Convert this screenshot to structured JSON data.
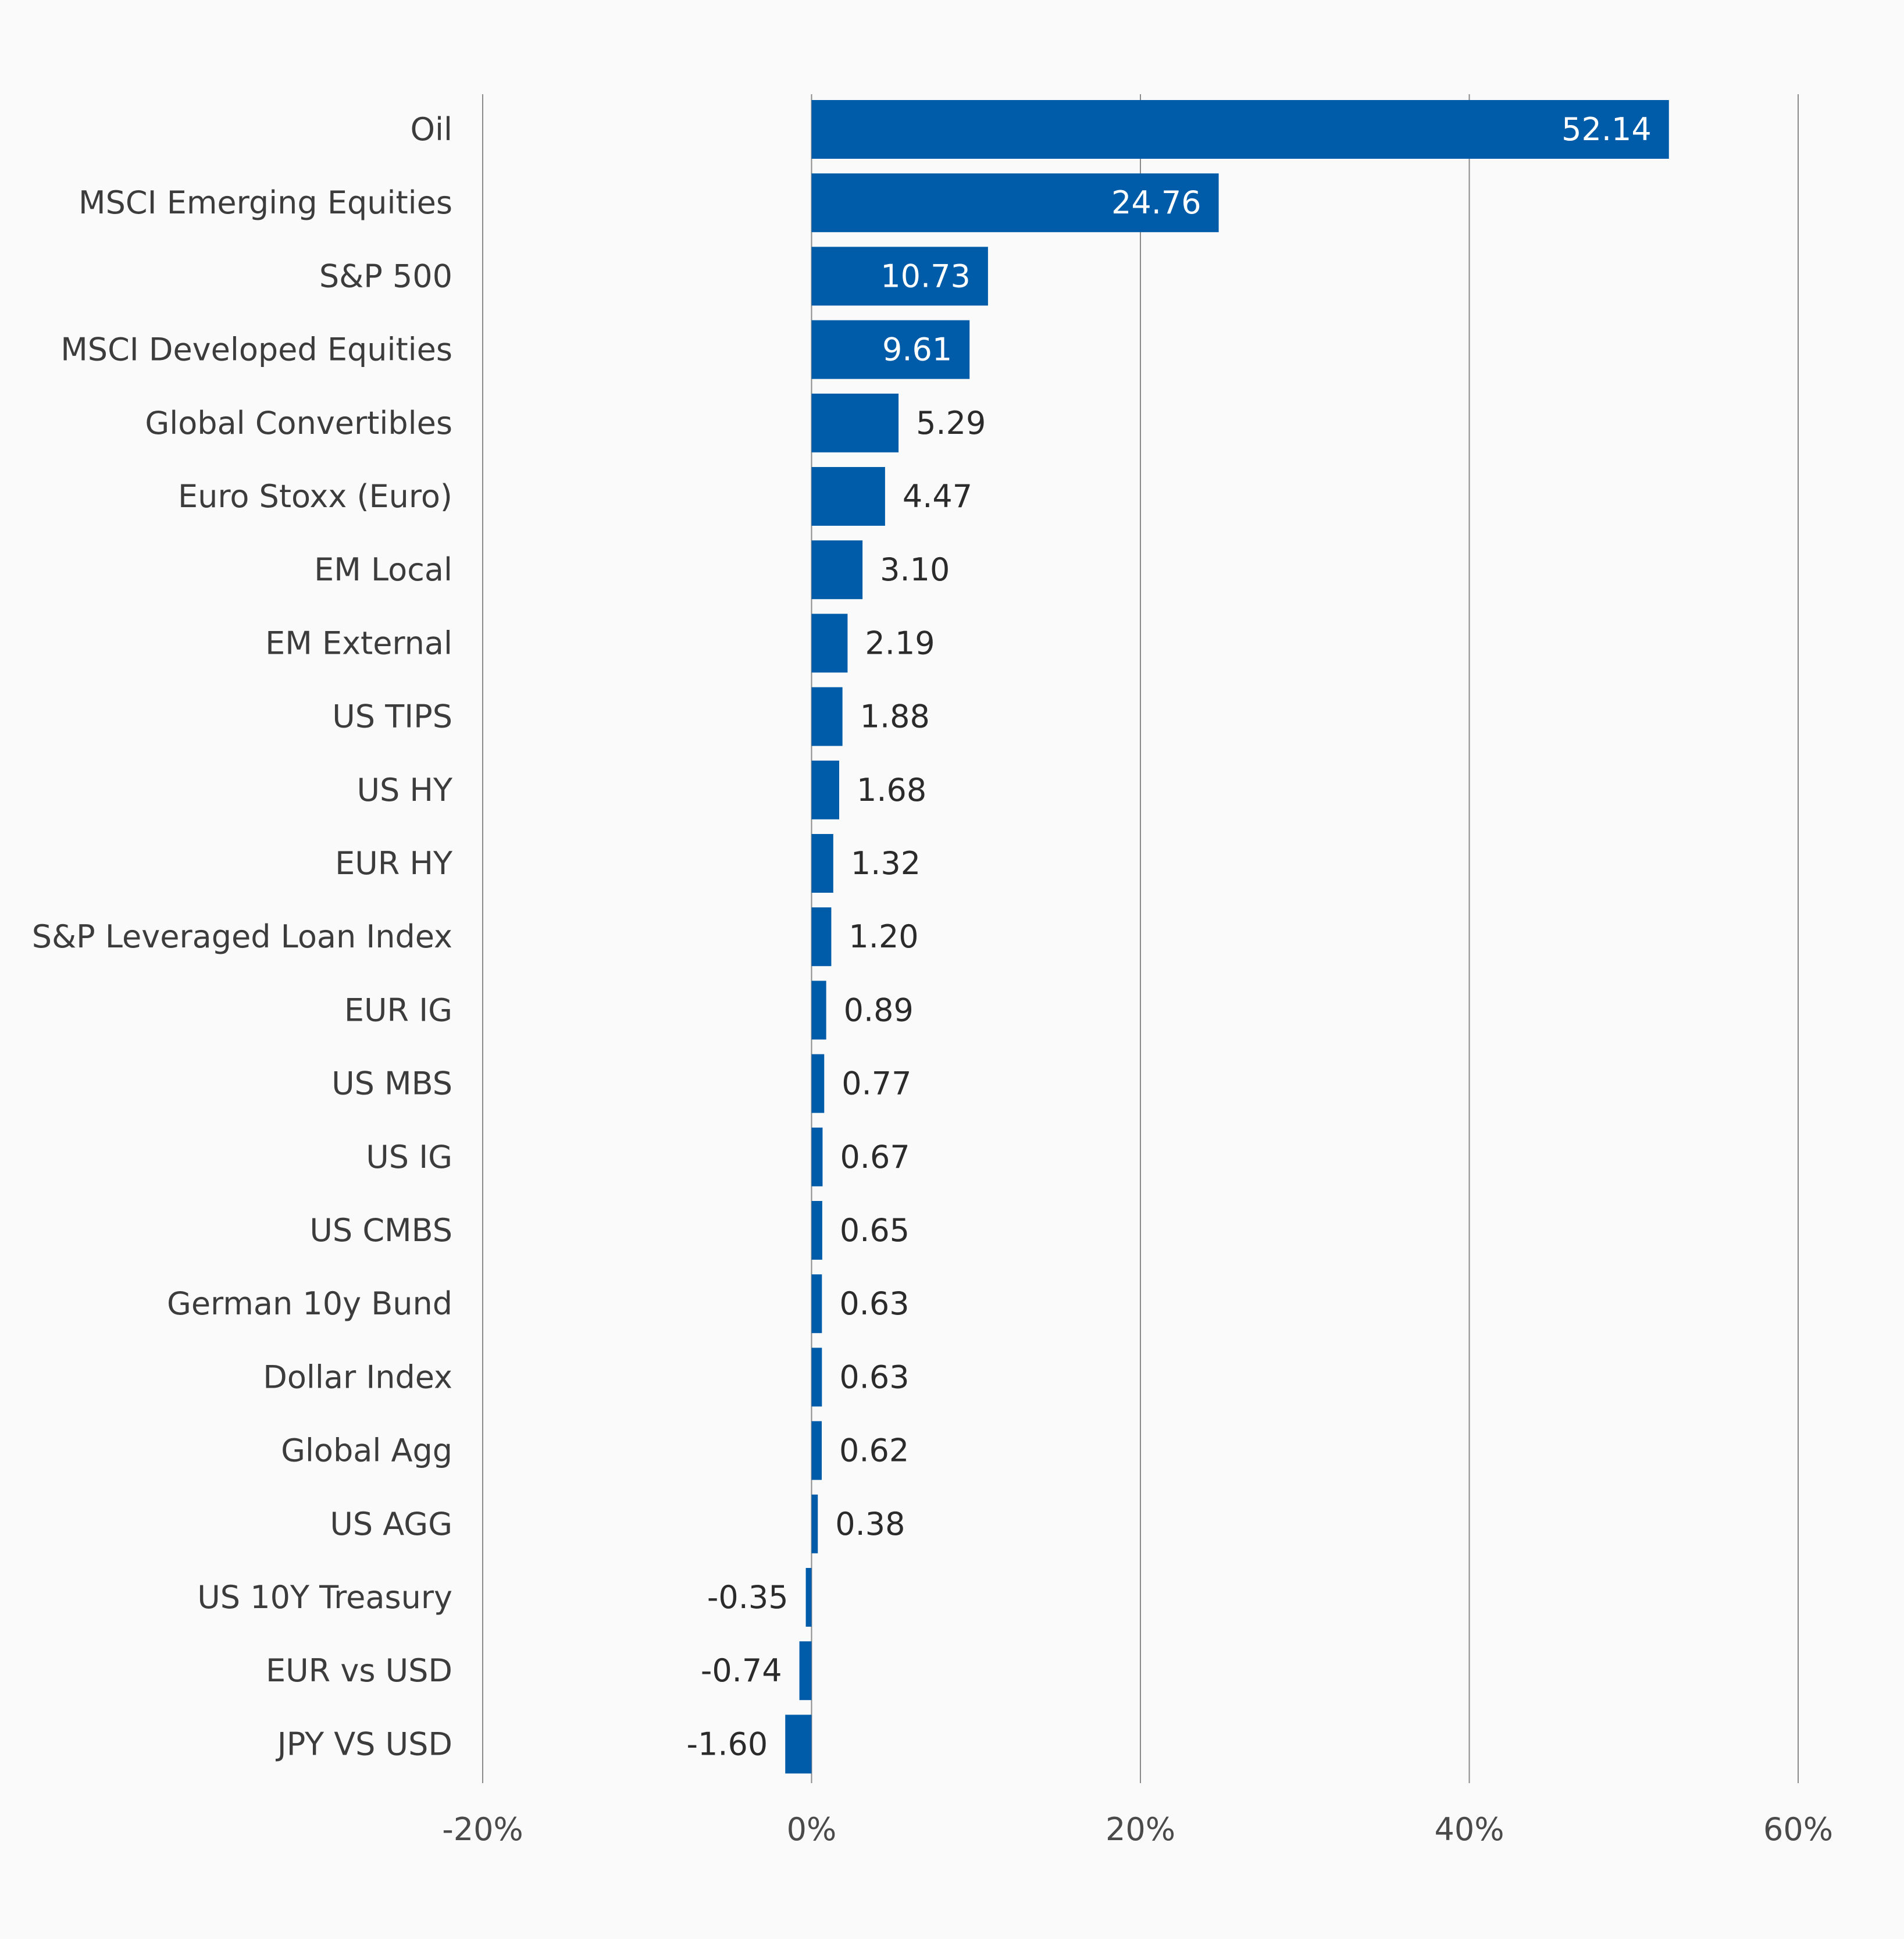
{
  "chart_data": {
    "type": "bar",
    "orientation": "horizontal",
    "categories": [
      "Oil",
      "MSCI Emerging Equities",
      "S&P 500",
      "MSCI Developed Equities",
      "Global Convertibles",
      "Euro Stoxx (Euro)",
      "EM Local",
      "EM External",
      "US TIPS",
      "US HY",
      "EUR HY",
      "S&P Leveraged Loan Index",
      "EUR IG",
      "US MBS",
      "US IG",
      "US CMBS",
      "German 10y Bund",
      "Dollar Index",
      "Global Agg",
      "US AGG",
      "US 10Y Treasury",
      "EUR vs USD",
      "JPY VS USD"
    ],
    "values": [
      52.14,
      24.76,
      10.73,
      9.61,
      5.29,
      4.47,
      3.1,
      2.19,
      1.88,
      1.68,
      1.32,
      1.2,
      0.89,
      0.77,
      0.67,
      0.65,
      0.63,
      0.63,
      0.62,
      0.38,
      -0.35,
      -0.74,
      -1.6
    ],
    "value_labels": [
      "52.14",
      "24.76",
      "10.73",
      "9.61",
      "5.29",
      "4.47",
      "3.10",
      "2.19",
      "1.88",
      "1.68",
      "1.32",
      "1.20",
      "0.89",
      "0.77",
      "0.67",
      "0.65",
      "0.63",
      "0.63",
      "0.62",
      "0.38",
      "-0.35",
      "-0.74",
      "-1.60"
    ],
    "xlim": [
      -20,
      60
    ],
    "xticks": [
      -20,
      0,
      20,
      40,
      60
    ],
    "xtick_labels": [
      "-20%",
      "0%",
      "20%",
      "40%",
      "60%"
    ],
    "title": "",
    "xlabel": "",
    "ylabel": "",
    "grid": "vertical",
    "legend": "none",
    "colors": {
      "bar": "#005ca8",
      "label_inside": "#ffffff",
      "label_outside": "#2b2b2b",
      "grid": "#8a8a8a",
      "background": "#fafafa"
    }
  }
}
